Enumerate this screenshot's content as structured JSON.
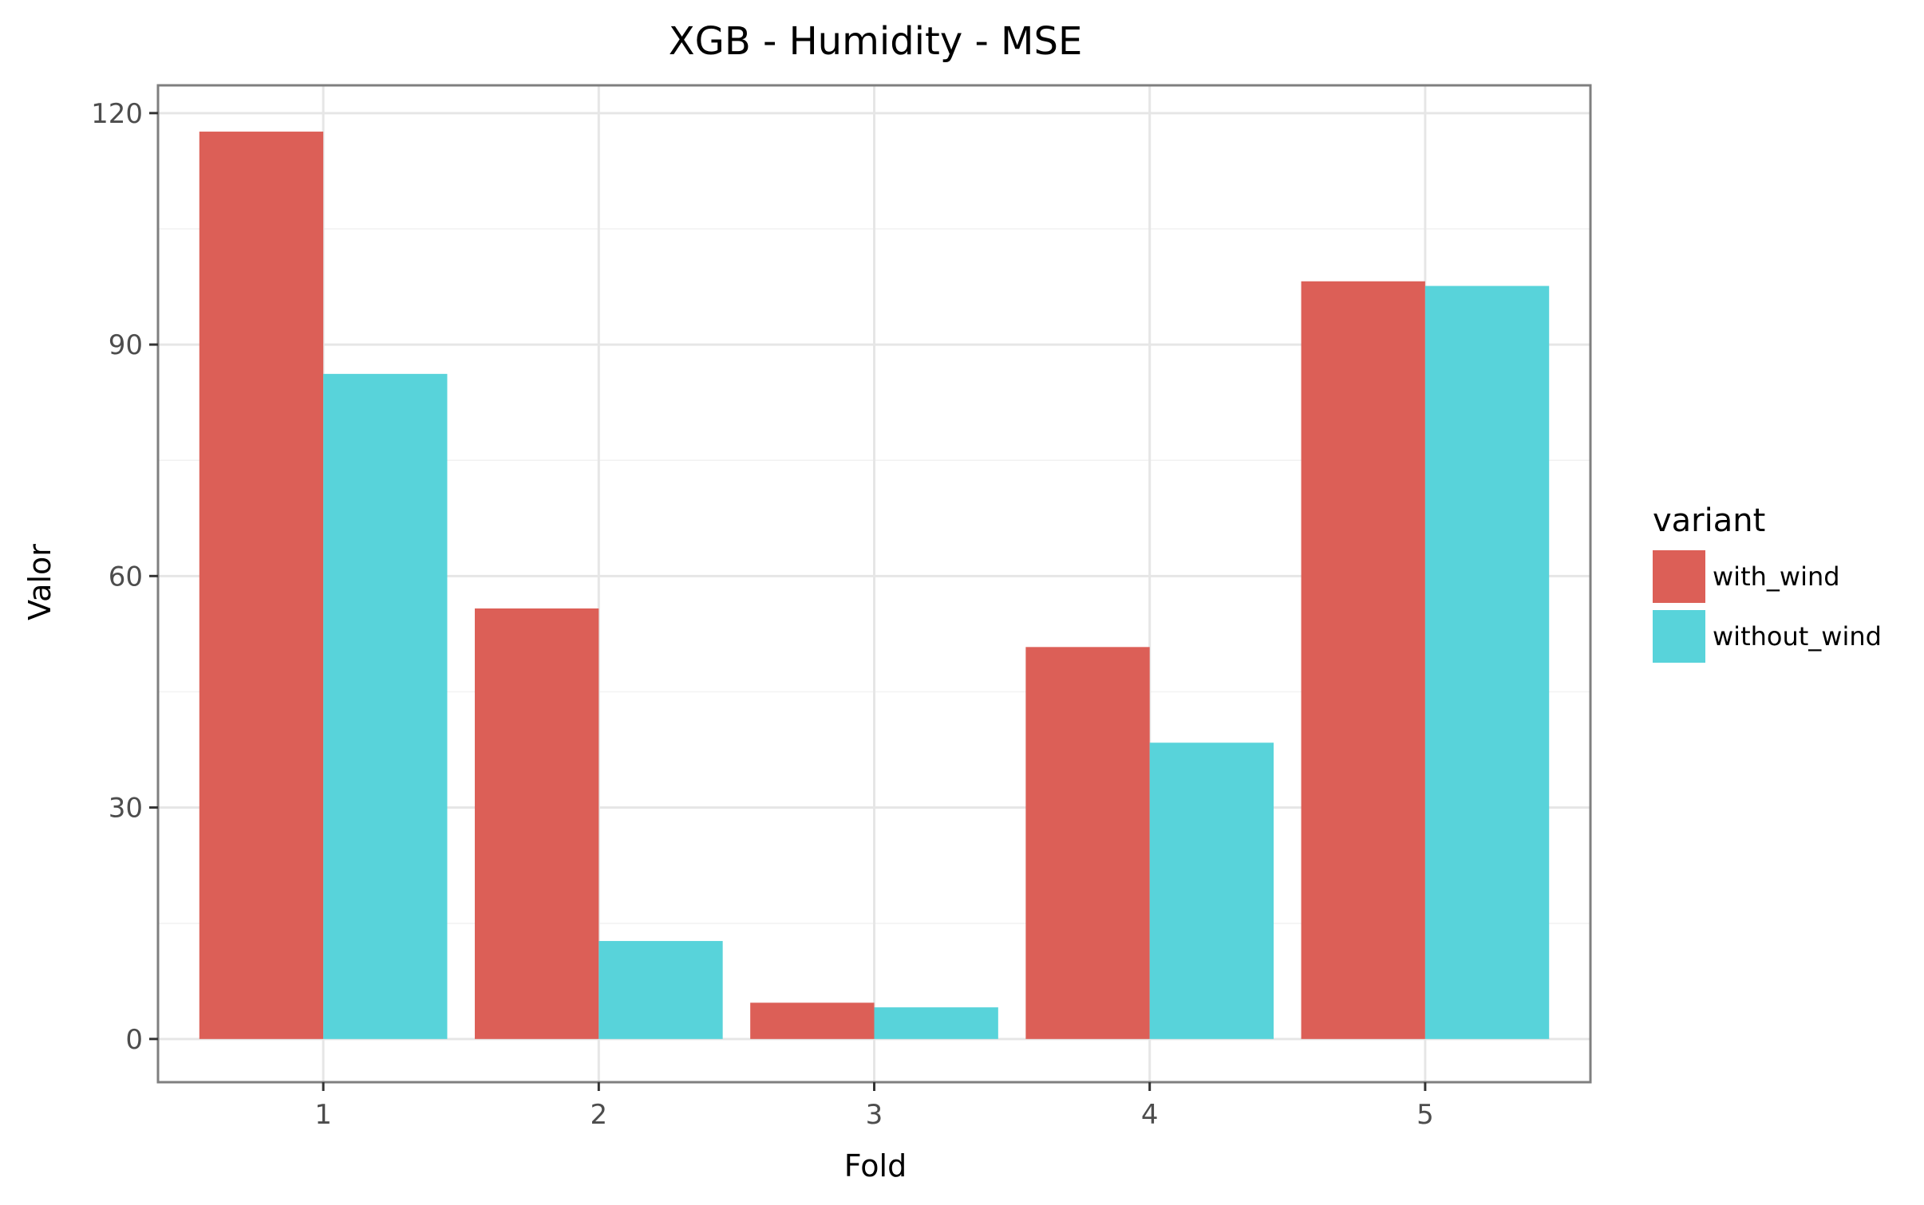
{
  "chart_data": {
    "type": "bar",
    "title": "XGB - Humidity - MSE",
    "xlabel": "Fold",
    "ylabel": "Valor",
    "categories": [
      "1",
      "2",
      "3",
      "4",
      "5"
    ],
    "series": [
      {
        "name": "with_wind",
        "color": "#dc5f57",
        "values": [
          117.6,
          55.8,
          4.7,
          50.8,
          98.2
        ]
      },
      {
        "name": "without_wind",
        "color": "#58d3da",
        "values": [
          86.2,
          12.7,
          4.1,
          38.4,
          97.6
        ]
      }
    ],
    "ylim": [
      -5.6,
      123.6
    ],
    "yticks": [
      0,
      30,
      60,
      90,
      120
    ],
    "legend": {
      "title": "variant",
      "position": "right"
    },
    "grid": true
  }
}
